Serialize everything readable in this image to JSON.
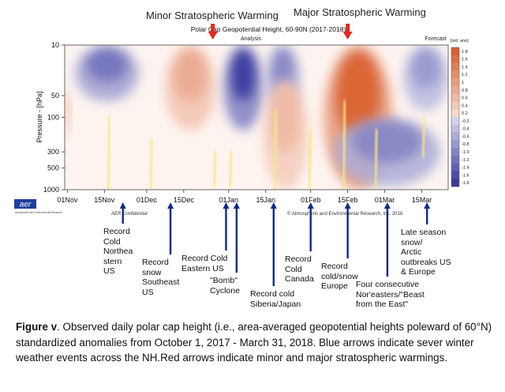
{
  "chart_data": {
    "type": "heatmap",
    "title": "Polar Cap Geopotential Height, 60-90N (2017-2018)",
    "analysis_label": "Analysis",
    "forecast_label": "Forecast",
    "ylabel": "Pressure - [hPa]",
    "y_ticks": [
      10,
      50,
      100,
      300,
      500,
      1000
    ],
    "y_range_hpa": [
      1000,
      10
    ],
    "x_range": [
      "2017-10-31",
      "2018-03-25"
    ],
    "x_ticks": [
      {
        "label": "01Nov",
        "date": "2017-11-01"
      },
      {
        "label": "15Nov",
        "date": "2017-11-15"
      },
      {
        "label": "01Dec",
        "date": "2017-12-01"
      },
      {
        "label": "15Dec",
        "date": "2017-12-15"
      },
      {
        "label": "01Jan",
        "date": "2018-01-01"
      },
      {
        "label": "15Jan",
        "date": "2018-01-15"
      },
      {
        "label": "01Feb",
        "date": "2018-02-01"
      },
      {
        "label": "15Feb",
        "date": "2018-02-15"
      },
      {
        "label": "01Mar",
        "date": "2018-03-01"
      },
      {
        "label": "15Mar",
        "date": "2018-03-15"
      }
    ],
    "colorbar": {
      "label": "[std. ano]",
      "ticks": [
        "1.8",
        "1.6",
        "1.4",
        "1.2",
        "1",
        "0.8",
        "0.6",
        "0.4",
        "0.2",
        "-0.2",
        "-0.4",
        "-0.6",
        "-0.8",
        "-1.0",
        "-1.2",
        "-1.4",
        "-1.6",
        "-1.8"
      ]
    },
    "anomaly_features": [
      {
        "sign": "negative",
        "start": "2017-11-04",
        "end": "2017-11-28",
        "p_top": 10,
        "p_bottom": 60,
        "peak": -1.2
      },
      {
        "sign": "positive",
        "start": "2017-12-08",
        "end": "2017-12-27",
        "p_top": 10,
        "p_bottom": 150,
        "peak": 0.8
      },
      {
        "sign": "negative",
        "start": "2017-12-30",
        "end": "2018-01-14",
        "p_top": 10,
        "p_bottom": 150,
        "peak": -1.8
      },
      {
        "sign": "negative",
        "start": "2018-01-15",
        "end": "2018-01-28",
        "p_top": 10,
        "p_bottom": 90,
        "peak": -1.0
      },
      {
        "sign": "positive",
        "start": "2018-01-14",
        "end": "2018-01-31",
        "p_top": 30,
        "p_bottom": 1000,
        "peak": 0.6
      },
      {
        "sign": "positive",
        "start": "2018-02-06",
        "end": "2018-03-04",
        "p_top": 10,
        "p_bottom": 1000,
        "peak": 1.8
      },
      {
        "sign": "negative",
        "start": "2018-02-10",
        "end": "2018-03-22",
        "p_top": 100,
        "p_bottom": 900,
        "peak": -1.0
      },
      {
        "sign": "negative",
        "start": "2018-03-08",
        "end": "2018-03-25",
        "p_top": 10,
        "p_bottom": 80,
        "peak": -0.8
      },
      {
        "sign": "positive",
        "start": "2017-10-31",
        "end": "2017-11-02",
        "p_top": 40,
        "p_bottom": 200,
        "peak": 0.8
      }
    ],
    "yellow_streaks": [
      {
        "date": "2017-11-17",
        "p_top": 100,
        "p_bottom": 1000
      },
      {
        "date": "2017-12-03",
        "p_top": 200,
        "p_bottom": 1000
      },
      {
        "date": "2017-12-27",
        "p_top": 300,
        "p_bottom": 900
      },
      {
        "date": "2018-01-02",
        "p_top": 300,
        "p_bottom": 900
      },
      {
        "date": "2018-01-19",
        "p_top": 80,
        "p_bottom": 1000
      },
      {
        "date": "2018-02-01",
        "p_top": 150,
        "p_bottom": 1000
      },
      {
        "date": "2018-02-14",
        "p_top": 60,
        "p_bottom": 1000
      },
      {
        "date": "2018-02-26",
        "p_top": 150,
        "p_bottom": 1000
      },
      {
        "date": "2018-03-16",
        "p_top": 100,
        "p_bottom": 350
      }
    ],
    "stratospheric_warmings": [
      {
        "label": "Minor Stratospheric Warming",
        "date": "2017-12-26"
      },
      {
        "label": "Major Stratospheric Warming",
        "date": "2018-02-15"
      }
    ],
    "weather_events": [
      {
        "label": "Record\nCold\nNorthea\nstern\nUS",
        "date": "2017-11-22"
      },
      {
        "label": "Record\nsnow\nSoutheast\nUS",
        "date": "2017-12-10"
      },
      {
        "label": "Record Cold\nEastern US",
        "date": "2017-12-31"
      },
      {
        "label": "\"Bomb\"\nCyclone",
        "date": "2018-01-04"
      },
      {
        "label": "Record cold\nSiberia/Japan",
        "date": "2018-01-18"
      },
      {
        "label": "Record\nCold\nCanada",
        "date": "2018-02-01"
      },
      {
        "label": "Record\ncold/snow\nEurope",
        "date": "2018-02-15"
      },
      {
        "label": "Four consecutive\nNor'easters/\"Beast\nfrom the East\"",
        "date": "2018-03-02"
      },
      {
        "label": "Late season\nsnow/\nArctic\noutbreaks US\n& Europe",
        "date": "2018-03-17"
      }
    ]
  },
  "header": {
    "minor_warming": "Minor Stratospheric Warming",
    "major_warming": "Major Stratospheric Warming"
  },
  "footer": {
    "logo": "aer",
    "logo_caption": "Atmospheric and Environmental Research",
    "confidential": "AER Confidential",
    "copyright": "© Atmospheric and Environmental Research, Inc. 2018"
  },
  "colors": {
    "positive_max": "#d96030",
    "negative_max": "#3a3aa0",
    "arrow_blue": "#0e2a8c",
    "arrow_red": "#e02a20",
    "streak": "#f2ea80"
  },
  "caption": {
    "label": "Figure v",
    "text": ". Observed  daily polar cap height (i.e., area-averaged geopotential heights poleward of 60°N) standardized anomalies from October 1, 2017 - March 31, 2018. Blue arrows indicate sever winter weather events across the NH.Red arrows indicate minor and major stratospheric warmings."
  }
}
